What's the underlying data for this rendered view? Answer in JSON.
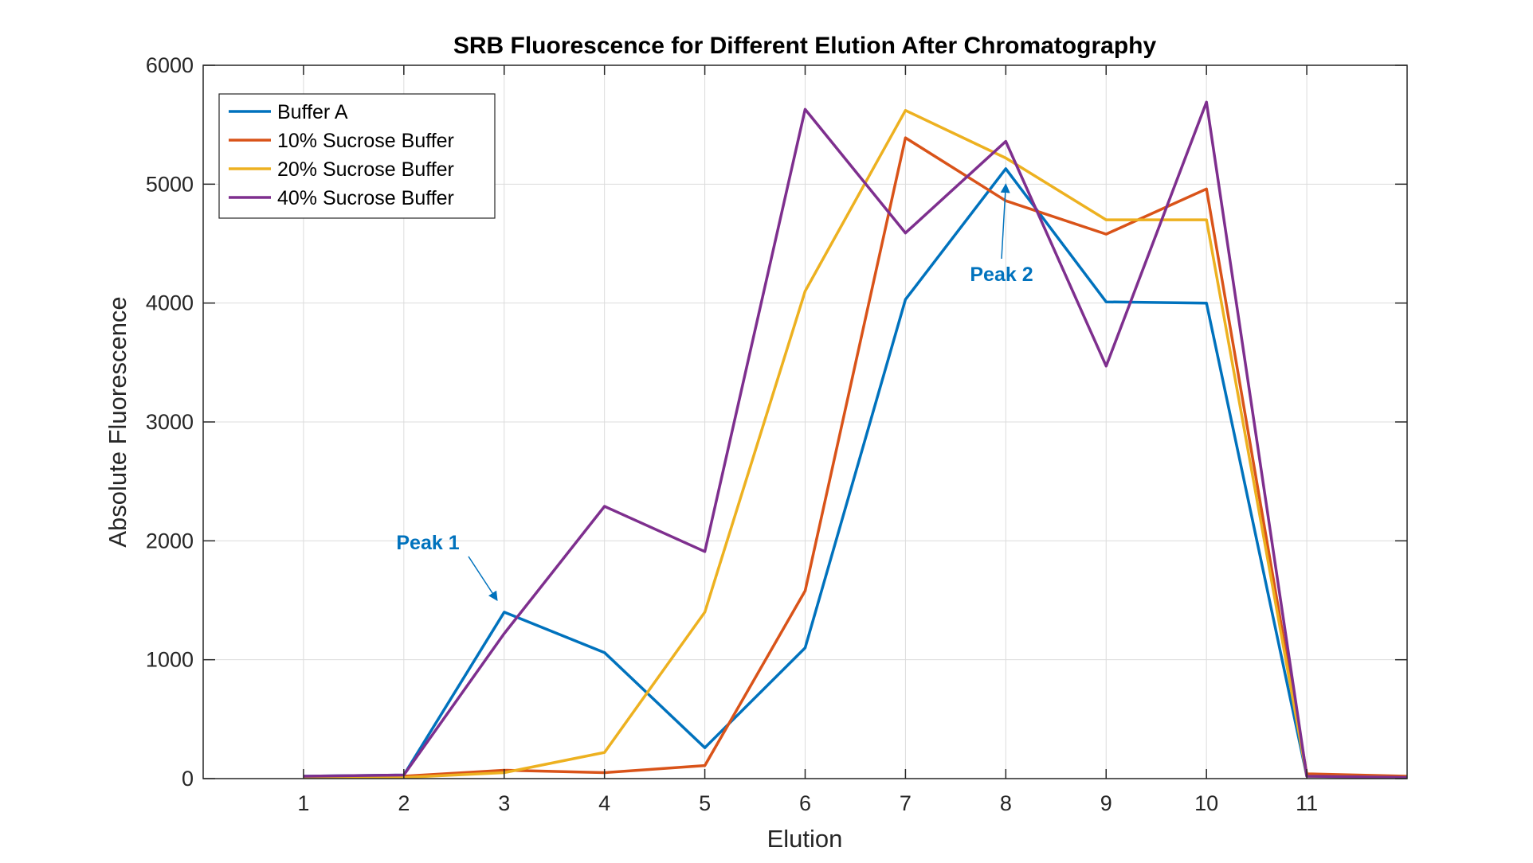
{
  "chart_data": {
    "type": "line",
    "title": "SRB Fluorescence for Different Elution After Chromatography",
    "xlabel": "Elution",
    "ylabel": "Absolute Fluorescence",
    "x": [
      1,
      2,
      3,
      4,
      5,
      6,
      7,
      8,
      9,
      10,
      11,
      12
    ],
    "xticks": [
      1,
      2,
      3,
      4,
      5,
      6,
      7,
      8,
      9,
      10,
      11
    ],
    "yticks": [
      0,
      1000,
      2000,
      3000,
      4000,
      5000,
      6000
    ],
    "xlim": [
      0,
      12
    ],
    "ylim": [
      0,
      6000
    ],
    "grid": true,
    "legend_position": "top-left",
    "series": [
      {
        "name": "Buffer A",
        "color": "#0072BD",
        "values": [
          20,
          30,
          1400,
          1060,
          260,
          1100,
          4030,
          5130,
          4010,
          4000,
          20,
          10
        ]
      },
      {
        "name": "10% Sucrose Buffer",
        "color": "#D95319",
        "values": [
          10,
          20,
          70,
          50,
          110,
          1580,
          5390,
          4860,
          4580,
          4960,
          40,
          20
        ]
      },
      {
        "name": "20% Sucrose Buffer",
        "color": "#EDB120",
        "values": [
          10,
          10,
          50,
          220,
          1400,
          4100,
          5620,
          5220,
          4700,
          4700,
          20,
          10
        ]
      },
      {
        "name": "40% Sucrose Buffer",
        "color": "#7E2F8E",
        "values": [
          20,
          30,
          1220,
          2290,
          1910,
          5630,
          4590,
          5360,
          3470,
          5690,
          20,
          10
        ]
      }
    ],
    "annotations": [
      {
        "text": "Peak 1",
        "color": "#0072BD",
        "arrow_to": {
          "x": 2.93,
          "y": 1500
        }
      },
      {
        "text": "Peak 2",
        "color": "#0072BD",
        "arrow_to": {
          "x": 8.0,
          "y": 5000
        }
      }
    ]
  }
}
